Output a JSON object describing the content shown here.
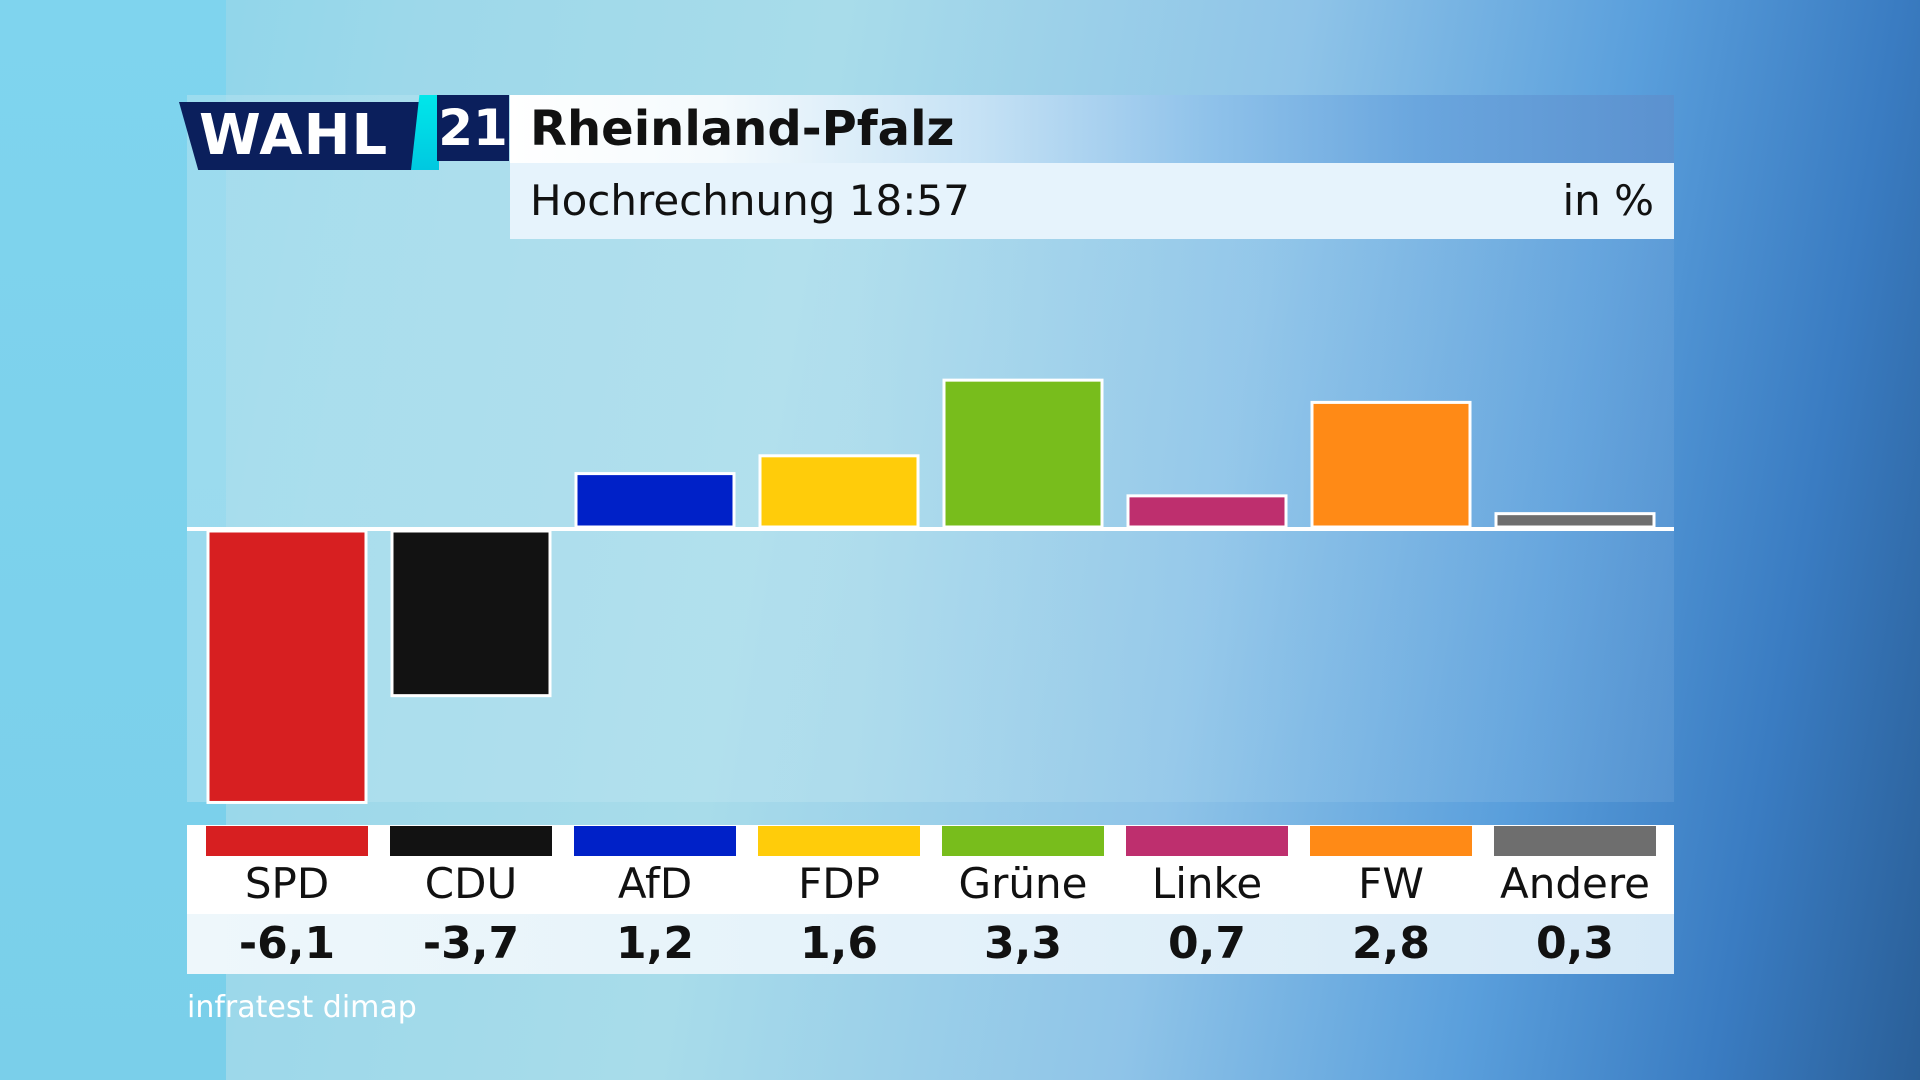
{
  "logo": {
    "wahl": "WAHL",
    "year": "21"
  },
  "header": {
    "title": "Rheinland-Pfalz",
    "subtitle": "Hochrechnung 18:57",
    "unit": "in %"
  },
  "source": "infratest dimap",
  "colors": {
    "SPD": "#d71f21",
    "CDU": "#121212",
    "AfD": "#0021c8",
    "FDP": "#ffcc0a",
    "Grüne": "#78bd1c",
    "Linke": "#be2f6e",
    "FW": "#ff8a16",
    "Andere": "#6e6e6e"
  },
  "parties": [
    {
      "name": "SPD",
      "value": "-6,1"
    },
    {
      "name": "CDU",
      "value": "-3,7"
    },
    {
      "name": "AfD",
      "value": "1,2"
    },
    {
      "name": "FDP",
      "value": "1,6"
    },
    {
      "name": "Grüne",
      "value": "3,3"
    },
    {
      "name": "Linke",
      "value": "0,7"
    },
    {
      "name": "FW",
      "value": "2,8"
    },
    {
      "name": "Andere",
      "value": "0,3"
    }
  ],
  "chart_data": {
    "type": "bar",
    "title": "Rheinland-Pfalz",
    "subtitle": "Hochrechnung 18:57",
    "ylabel": "in %",
    "categories": [
      "SPD",
      "CDU",
      "AfD",
      "FDP",
      "Grüne",
      "Linke",
      "FW",
      "Andere"
    ],
    "values": [
      -6.1,
      -3.7,
      1.2,
      1.6,
      3.3,
      0.7,
      2.8,
      0.3
    ],
    "ylim": [
      -6.4,
      6.4
    ],
    "grid": false,
    "legend": "bottom"
  }
}
